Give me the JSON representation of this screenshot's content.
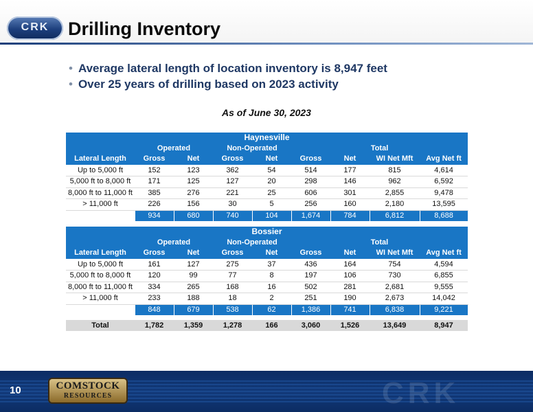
{
  "header": {
    "logo_text": "CRK",
    "title": "Drilling Inventory"
  },
  "bullets": [
    "Average lateral length of location inventory is 8,947 feet",
    "Over 25 years of drilling based on 2023 activity"
  ],
  "as_of": "As of June 30, 2023",
  "group_labels": {
    "operated": "Operated",
    "non_operated": "Non-Operated",
    "total": "Total"
  },
  "columns": [
    "Lateral Length",
    "Gross",
    "Net",
    "Gross",
    "Net",
    "Gross",
    "Net",
    "WI Net Mft",
    "Avg Net ft"
  ],
  "haynesville": {
    "title": "Haynesville",
    "rows": [
      [
        "Up to 5,000 ft",
        "152",
        "123",
        "362",
        "54",
        "514",
        "177",
        "815",
        "4,614"
      ],
      [
        "5,000 ft to 8,000 ft",
        "171",
        "125",
        "127",
        "20",
        "298",
        "146",
        "962",
        "6,592"
      ],
      [
        "8,000 ft to 11,000 ft",
        "385",
        "276",
        "221",
        "25",
        "606",
        "301",
        "2,855",
        "9,478"
      ],
      [
        "> 11,000 ft",
        "226",
        "156",
        "30",
        "5",
        "256",
        "160",
        "2,180",
        "13,595"
      ]
    ],
    "subtotal": [
      "934",
      "680",
      "740",
      "104",
      "1,674",
      "784",
      "6,812",
      "8,688"
    ]
  },
  "bossier": {
    "title": "Bossier",
    "rows": [
      [
        "Up to 5,000 ft",
        "161",
        "127",
        "275",
        "37",
        "436",
        "164",
        "754",
        "4,594"
      ],
      [
        "5,000 ft to 8,000 ft",
        "120",
        "99",
        "77",
        "8",
        "197",
        "106",
        "730",
        "6,855"
      ],
      [
        "8,000 ft to 11,000 ft",
        "334",
        "265",
        "168",
        "16",
        "502",
        "281",
        "2,681",
        "9,555"
      ],
      [
        "> 11,000 ft",
        "233",
        "188",
        "18",
        "2",
        "251",
        "190",
        "2,673",
        "14,042"
      ]
    ],
    "subtotal": [
      "848",
      "679",
      "538",
      "62",
      "1,386",
      "741",
      "6,838",
      "9,221"
    ]
  },
  "grand_total": [
    "Total",
    "1,782",
    "1,359",
    "1,278",
    "166",
    "3,060",
    "1,526",
    "13,649",
    "8,947"
  ],
  "footer": {
    "page_number": "10",
    "company_line1": "COMSTOCK",
    "company_line2": "RESOURCES",
    "ghost_logo": "CRK"
  },
  "colors": {
    "header_blue": "#1976c5",
    "bullet_text": "#1f3864",
    "footer_navy": "#0c2c63"
  }
}
